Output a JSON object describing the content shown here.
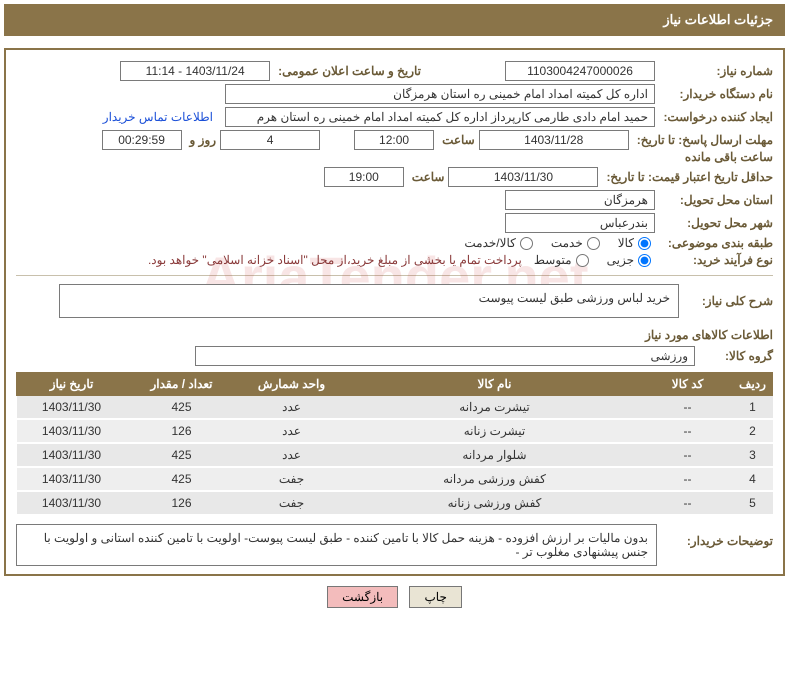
{
  "header": "جزئیات اطلاعات نیاز",
  "watermark": "AriaTender.net",
  "labels": {
    "need_number": "شماره نیاز:",
    "announce_datetime": "تاریخ و ساعت اعلان عمومی:",
    "buyer_org": "نام دستگاه خریدار:",
    "requester": "ایجاد کننده درخواست:",
    "contact_link": "اطلاعات تماس خریدار",
    "reply_deadline": "مهلت ارسال پاسخ: تا تاریخ:",
    "hour": "ساعت",
    "days_and": "روز و",
    "time_left": "ساعت باقی مانده",
    "price_validity": "حداقل تاریخ اعتبار قیمت: تا تاریخ:",
    "delivery_province": "استان محل تحویل:",
    "delivery_city": "شهر محل تحویل:",
    "subject_cat": "طبقه بندی موضوعی:",
    "purchase_type": "نوع فرآیند خرید:",
    "payment_note": "پرداخت تمام یا بخشی از مبلغ خرید،از محل \"اسناد خزانه اسلامی\" خواهد بود.",
    "general_desc": "شرح کلی نیاز:",
    "items_info": "اطلاعات کالاهای مورد نیاز",
    "item_group": "گروه کالا:",
    "buyer_notes": "توضیحات خریدار:"
  },
  "fields": {
    "need_number": "1103004247000026",
    "announce_datetime": "1403/11/24 - 11:14",
    "buyer_org": "اداره کل کمیته امداد امام خمینی  ره  استان هرمزگان",
    "requester": "حمید امام دادی طارمی کارپرداز اداره کل کمیته امداد امام خمینی  ره  استان هرم",
    "reply_date": "1403/11/28",
    "reply_time": "12:00",
    "days_remaining": "4",
    "time_remaining": "00:29:59",
    "price_valid_date": "1403/11/30",
    "price_valid_time": "19:00",
    "delivery_province": "هرمزگان",
    "delivery_city": "بندرعباس",
    "general_desc": "خرید لباس ورزشی طبق لیست پیوست",
    "item_group": "ورزشی",
    "buyer_notes": "بدون مالیات بر ارزش افزوده - هزینه حمل کالا با تامین کننده - طبق لیست پیوست- اولویت با تامین کننده استانی و اولویت با جنس پیشنهادی مغلوب تر -"
  },
  "radio_subject": {
    "goods": "کالا",
    "service": "خدمت",
    "both": "کالا/خدمت",
    "selected": "goods"
  },
  "radio_purchase": {
    "partial": "جزیی",
    "medium": "متوسط",
    "selected": "partial"
  },
  "table": {
    "columns": [
      "ردیف",
      "کد کالا",
      "نام کالا",
      "واحد شمارش",
      "تعداد / مقدار",
      "تاریخ نیاز"
    ],
    "rows": [
      [
        "1",
        "--",
        "تیشرت مردانه",
        "عدد",
        "425",
        "1403/11/30"
      ],
      [
        "2",
        "--",
        "تیشرت زنانه",
        "عدد",
        "126",
        "1403/11/30"
      ],
      [
        "3",
        "--",
        "شلوار مردانه",
        "عدد",
        "425",
        "1403/11/30"
      ],
      [
        "4",
        "--",
        "کفش ورزشی مردانه",
        "جفت",
        "425",
        "1403/11/30"
      ],
      [
        "5",
        "--",
        "کفش ورزشی زنانه",
        "جفت",
        "126",
        "1403/11/30"
      ]
    ]
  },
  "buttons": {
    "print": "چاپ",
    "back": "بازگشت"
  }
}
